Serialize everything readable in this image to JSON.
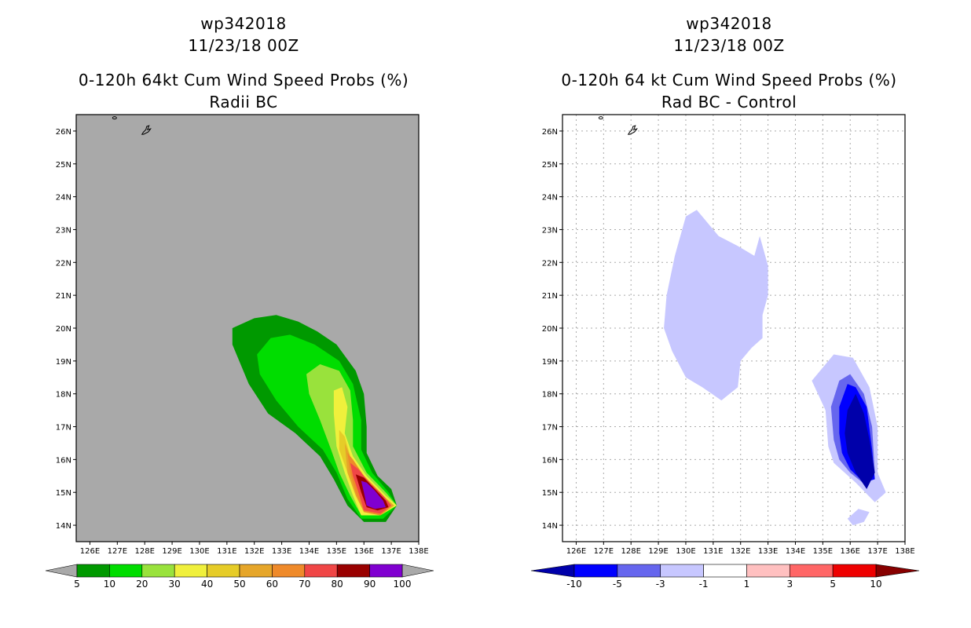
{
  "left": {
    "storm": "wp342018",
    "date": "11/23/18 00Z",
    "title": "0-120h 64kt Cum Wind Speed Probs (%)",
    "subtitle": "Radii BC"
  },
  "right": {
    "storm": "wp342018",
    "date": "11/23/18 00Z",
    "title": "0-120h 64 kt Cum Wind Speed Probs (%)",
    "subtitle": "Rad BC - Control"
  },
  "chart_data": [
    {
      "type": "heatmap",
      "title": "0-120h 64kt Cum Wind Speed Probs (%) Radii BC",
      "x_ticks": [
        "126E",
        "127E",
        "128E",
        "129E",
        "130E",
        "131E",
        "132E",
        "133E",
        "134E",
        "135E",
        "136E",
        "137E",
        "138E"
      ],
      "y_ticks": [
        "14N",
        "15N",
        "16N",
        "17N",
        "18N",
        "19N",
        "20N",
        "21N",
        "22N",
        "23N",
        "24N",
        "25N",
        "26N"
      ],
      "xlim": [
        125.5,
        138
      ],
      "ylim": [
        13.5,
        26.5
      ],
      "background": "#a9a9a9",
      "colorbar_labels": [
        "5",
        "10",
        "20",
        "30",
        "40",
        "50",
        "60",
        "70",
        "80",
        "90",
        "100"
      ],
      "colorbar_colors": [
        "#009900",
        "#00dd00",
        "#99e23c",
        "#f0f03c",
        "#e6cc28",
        "#e6a62a",
        "#ef8a2a",
        "#f04646",
        "#990000",
        "#8000d0"
      ],
      "contours": [
        {
          "level": 5,
          "color": "#009900",
          "points": [
            [
              131.2,
              20.0
            ],
            [
              132.0,
              20.3
            ],
            [
              132.8,
              20.4
            ],
            [
              133.6,
              20.2
            ],
            [
              134.3,
              19.9
            ],
            [
              135.0,
              19.5
            ],
            [
              135.7,
              18.7
            ],
            [
              136.0,
              18.0
            ],
            [
              136.1,
              17.0
            ],
            [
              136.1,
              16.2
            ],
            [
              136.5,
              15.5
            ],
            [
              137.0,
              15.1
            ],
            [
              137.2,
              14.6
            ],
            [
              136.8,
              14.1
            ],
            [
              136.0,
              14.1
            ],
            [
              135.4,
              14.6
            ],
            [
              134.9,
              15.4
            ],
            [
              134.4,
              16.1
            ],
            [
              133.5,
              16.8
            ],
            [
              132.5,
              17.4
            ],
            [
              131.8,
              18.3
            ],
            [
              131.2,
              19.5
            ]
          ]
        },
        {
          "level": 10,
          "color": "#00dd00",
          "points": [
            [
              132.1,
              19.2
            ],
            [
              132.6,
              19.7
            ],
            [
              133.3,
              19.8
            ],
            [
              134.2,
              19.5
            ],
            [
              135.1,
              19.0
            ],
            [
              135.6,
              18.3
            ],
            [
              135.9,
              17.2
            ],
            [
              135.9,
              16.3
            ],
            [
              136.3,
              15.6
            ],
            [
              136.9,
              15.0
            ],
            [
              137.2,
              14.6
            ],
            [
              136.7,
              14.2
            ],
            [
              135.9,
              14.2
            ],
            [
              135.4,
              14.8
            ],
            [
              135.0,
              15.6
            ],
            [
              134.5,
              16.3
            ],
            [
              133.6,
              17.0
            ],
            [
              132.8,
              17.8
            ],
            [
              132.2,
              18.6
            ]
          ]
        },
        {
          "level": 20,
          "color": "#99e23c",
          "points": [
            [
              133.9,
              18.6
            ],
            [
              134.4,
              18.9
            ],
            [
              135.1,
              18.7
            ],
            [
              135.5,
              18.1
            ],
            [
              135.6,
              17.2
            ],
            [
              135.6,
              16.4
            ],
            [
              136.1,
              15.6
            ],
            [
              136.8,
              15.0
            ],
            [
              137.2,
              14.6
            ],
            [
              136.6,
              14.3
            ],
            [
              135.9,
              14.3
            ],
            [
              135.5,
              14.9
            ],
            [
              135.1,
              15.6
            ],
            [
              134.8,
              16.3
            ],
            [
              134.4,
              17.2
            ],
            [
              134.0,
              18.0
            ]
          ]
        },
        {
          "level": 30,
          "color": "#f0f03c",
          "points": [
            [
              134.9,
              18.1
            ],
            [
              135.2,
              18.2
            ],
            [
              135.4,
              17.6
            ],
            [
              135.3,
              16.8
            ],
            [
              135.6,
              16.1
            ],
            [
              136.1,
              15.5
            ],
            [
              136.8,
              14.9
            ],
            [
              137.2,
              14.6
            ],
            [
              136.6,
              14.3
            ],
            [
              135.9,
              14.3
            ],
            [
              135.6,
              14.9
            ],
            [
              135.3,
              15.6
            ],
            [
              135.0,
              16.4
            ],
            [
              134.9,
              17.4
            ]
          ]
        },
        {
          "level": 40,
          "color": "#e6cc28",
          "points": [
            [
              135.1,
              16.9
            ],
            [
              135.3,
              16.7
            ],
            [
              135.5,
              16.1
            ],
            [
              136.0,
              15.5
            ],
            [
              136.7,
              14.9
            ],
            [
              137.1,
              14.6
            ],
            [
              136.6,
              14.3
            ],
            [
              136.0,
              14.4
            ],
            [
              135.7,
              14.9
            ],
            [
              135.4,
              15.6
            ],
            [
              135.1,
              16.3
            ]
          ]
        },
        {
          "level": 50,
          "color": "#e6a62a",
          "points": [
            [
              135.3,
              16.5
            ],
            [
              135.5,
              16.1
            ],
            [
              136.0,
              15.5
            ],
            [
              136.7,
              14.9
            ],
            [
              137.1,
              14.6
            ],
            [
              136.6,
              14.3
            ],
            [
              136.0,
              14.4
            ],
            [
              135.7,
              14.9
            ],
            [
              135.4,
              15.6
            ]
          ]
        },
        {
          "level": 60,
          "color": "#ef8a2a",
          "points": [
            [
              135.4,
              16.2
            ],
            [
              135.6,
              16.0
            ],
            [
              136.0,
              15.5
            ],
            [
              136.6,
              15.0
            ],
            [
              137.0,
              14.6
            ],
            [
              136.6,
              14.3
            ],
            [
              136.0,
              14.4
            ],
            [
              135.7,
              15.0
            ],
            [
              135.5,
              15.6
            ]
          ]
        },
        {
          "level": 70,
          "color": "#f04646",
          "points": [
            [
              135.5,
              15.9
            ],
            [
              135.8,
              15.7
            ],
            [
              136.2,
              15.3
            ],
            [
              136.7,
              14.9
            ],
            [
              137.0,
              14.6
            ],
            [
              136.6,
              14.35
            ],
            [
              136.0,
              14.45
            ],
            [
              135.8,
              15.0
            ],
            [
              135.6,
              15.5
            ]
          ]
        },
        {
          "level": 80,
          "color": "#990000",
          "points": [
            [
              135.7,
              15.55
            ],
            [
              136.0,
              15.45
            ],
            [
              136.4,
              15.1
            ],
            [
              136.8,
              14.75
            ],
            [
              136.9,
              14.55
            ],
            [
              136.5,
              14.45
            ],
            [
              136.1,
              14.55
            ],
            [
              135.9,
              15.0
            ]
          ]
        },
        {
          "level": 90,
          "color": "#8000d0",
          "points": [
            [
              135.9,
              15.35
            ],
            [
              136.1,
              15.3
            ],
            [
              136.4,
              15.05
            ],
            [
              136.7,
              14.75
            ],
            [
              136.8,
              14.55
            ],
            [
              136.4,
              14.5
            ],
            [
              136.1,
              14.6
            ],
            [
              136.0,
              15.0
            ]
          ]
        }
      ]
    },
    {
      "type": "heatmap",
      "title": "0-120h 64 kt Cum Wind Speed Probs (%) Rad BC - Control",
      "x_ticks": [
        "126E",
        "127E",
        "128E",
        "129E",
        "130E",
        "131E",
        "132E",
        "133E",
        "134E",
        "135E",
        "136E",
        "137E",
        "138E"
      ],
      "y_ticks": [
        "14N",
        "15N",
        "16N",
        "17N",
        "18N",
        "19N",
        "20N",
        "21N",
        "22N",
        "23N",
        "24N",
        "25N",
        "26N"
      ],
      "xlim": [
        125.5,
        138
      ],
      "ylim": [
        13.5,
        26.5
      ],
      "grid": true,
      "background": "#ffffff",
      "colorbar_labels": [
        "-10",
        "-5",
        "-3",
        "-1",
        "1",
        "3",
        "5",
        "10"
      ],
      "colorbar_colors": [
        "#0000aa",
        "#0000ff",
        "#6666ee",
        "#c7c7ff",
        "#ffffff",
        "#ffc0c0",
        "#ff6666",
        "#ee0000",
        "#880000"
      ],
      "contours": [
        {
          "level": -1,
          "color": "#c7c7ff",
          "points": [
            [
              129.3,
              21.0
            ],
            [
              129.6,
              22.2
            ],
            [
              130.0,
              23.4
            ],
            [
              130.4,
              23.6
            ],
            [
              131.2,
              22.8
            ],
            [
              131.9,
              22.5
            ],
            [
              132.5,
              22.2
            ],
            [
              132.7,
              22.8
            ],
            [
              133.0,
              21.9
            ],
            [
              133.0,
              21.0
            ],
            [
              132.8,
              20.4
            ],
            [
              132.8,
              19.7
            ],
            [
              132.4,
              19.4
            ],
            [
              132.0,
              19.0
            ],
            [
              131.9,
              18.2
            ],
            [
              131.3,
              17.8
            ],
            [
              130.6,
              18.2
            ],
            [
              130.0,
              18.5
            ],
            [
              129.5,
              19.3
            ],
            [
              129.2,
              20.0
            ]
          ]
        },
        {
          "level": -1,
          "color": "#c7c7ff",
          "points": [
            [
              134.6,
              18.4
            ],
            [
              135.4,
              19.2
            ],
            [
              136.1,
              19.1
            ],
            [
              136.7,
              18.2
            ],
            [
              137.0,
              17.0
            ],
            [
              137.0,
              15.6
            ],
            [
              137.3,
              15.0
            ],
            [
              136.9,
              14.7
            ],
            [
              136.2,
              15.3
            ],
            [
              135.4,
              15.9
            ],
            [
              135.2,
              16.4
            ],
            [
              135.1,
              17.5
            ]
          ]
        },
        {
          "level": -1,
          "color": "#c7c7ff",
          "points": [
            [
              135.9,
              14.2
            ],
            [
              136.3,
              14.5
            ],
            [
              136.7,
              14.4
            ],
            [
              136.5,
              14.1
            ],
            [
              136.1,
              14.0
            ]
          ]
        },
        {
          "level": -3,
          "color": "#6666ee",
          "points": [
            [
              135.3,
              17.6
            ],
            [
              135.6,
              18.4
            ],
            [
              136.0,
              18.6
            ],
            [
              136.5,
              18.0
            ],
            [
              136.8,
              17.0
            ],
            [
              136.9,
              15.6
            ],
            [
              136.6,
              15.2
            ],
            [
              136.0,
              15.6
            ],
            [
              135.6,
              16.0
            ],
            [
              135.4,
              16.6
            ]
          ]
        },
        {
          "level": -5,
          "color": "#0000ff",
          "points": [
            [
              135.6,
              17.6
            ],
            [
              135.9,
              18.3
            ],
            [
              136.2,
              18.2
            ],
            [
              136.6,
              17.6
            ],
            [
              136.8,
              16.3
            ],
            [
              136.9,
              15.4
            ],
            [
              136.5,
              15.3
            ],
            [
              136.0,
              15.7
            ],
            [
              135.7,
              16.2
            ],
            [
              135.6,
              16.8
            ]
          ]
        },
        {
          "level": -10,
          "color": "#0000aa",
          "points": [
            [
              135.9,
              17.5
            ],
            [
              136.2,
              18.0
            ],
            [
              136.5,
              17.4
            ],
            [
              136.7,
              16.6
            ],
            [
              136.9,
              15.6
            ],
            [
              136.6,
              15.1
            ],
            [
              136.2,
              15.6
            ],
            [
              135.9,
              16.2
            ],
            [
              135.8,
              16.8
            ]
          ]
        }
      ]
    }
  ]
}
